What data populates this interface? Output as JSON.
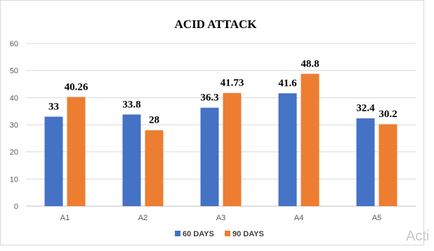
{
  "chart_data": {
    "type": "bar",
    "title": "ACID ATTACK",
    "categories": [
      "A1",
      "A2",
      "A3",
      "A4",
      "A5"
    ],
    "series": [
      {
        "name": "60 DAYS",
        "color": "#4472C4",
        "values": [
          33,
          33.8,
          36.3,
          41.6,
          32.4
        ],
        "labels": [
          "33",
          "33.8",
          "36.3",
          "41.6",
          "32.4"
        ]
      },
      {
        "name": "90 DAYS",
        "color": "#ED7D31",
        "values": [
          40.26,
          28,
          41.73,
          48.8,
          30.2
        ],
        "labels": [
          "40.26",
          "28",
          "41.73",
          "48.8",
          "30.2"
        ]
      }
    ],
    "ylim": [
      0,
      60
    ],
    "yticks": [
      0,
      10,
      20,
      30,
      40,
      50,
      60
    ],
    "xlabel": "",
    "ylabel": "",
    "grid": true,
    "legend": "bottom"
  },
  "watermark": "Acti"
}
